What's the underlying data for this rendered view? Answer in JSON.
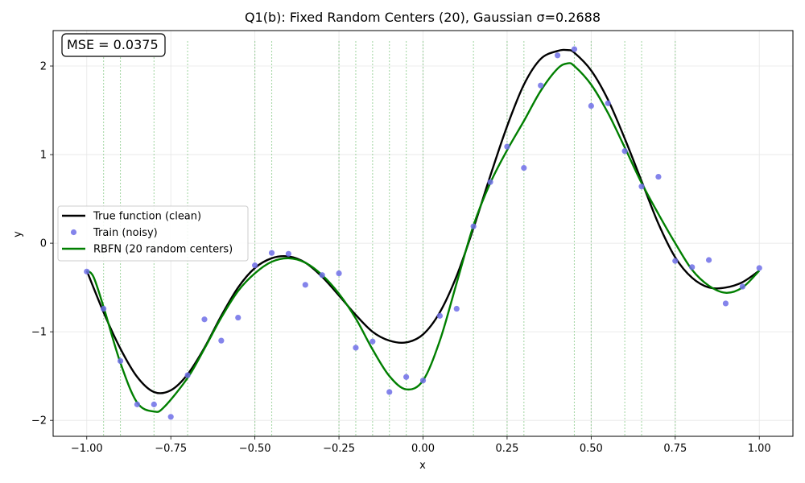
{
  "chart_data": {
    "type": "line",
    "title": "Q1(b): Fixed Random Centers (20), Gaussian σ=0.2688",
    "xlabel": "x",
    "ylabel": "y",
    "xlim": [
      -1.1,
      1.1
    ],
    "ylim": [
      -2.18,
      2.4
    ],
    "x_ticks": [
      -1.0,
      -0.75,
      -0.5,
      -0.25,
      0.0,
      0.25,
      0.5,
      0.75,
      1.0
    ],
    "x_tick_labels": [
      "−1.00",
      "−0.75",
      "−0.50",
      "−0.25",
      "0.00",
      "0.25",
      "0.50",
      "0.75",
      "1.00"
    ],
    "y_ticks": [
      -2,
      -1,
      0,
      1,
      2
    ],
    "y_tick_labels": [
      "−2",
      "−1",
      "0",
      "1",
      "2"
    ],
    "grid": true,
    "legend_position": "center-left",
    "annotation": "MSE = 0.0375",
    "series": [
      {
        "name": "True function (clean)",
        "kind": "line",
        "color": "#000000",
        "x": [
          -1.0,
          -0.95,
          -0.9,
          -0.85,
          -0.8,
          -0.75,
          -0.7,
          -0.65,
          -0.6,
          -0.55,
          -0.5,
          -0.45,
          -0.4,
          -0.35,
          -0.3,
          -0.25,
          -0.2,
          -0.15,
          -0.1,
          -0.05,
          0.0,
          0.05,
          0.1,
          0.15,
          0.2,
          0.25,
          0.3,
          0.35,
          0.4,
          0.43,
          0.45,
          0.5,
          0.55,
          0.6,
          0.65,
          0.7,
          0.75,
          0.8,
          0.85,
          0.9,
          0.95,
          1.0
        ],
        "y": [
          -0.31,
          -0.78,
          -1.19,
          -1.51,
          -1.68,
          -1.66,
          -1.48,
          -1.18,
          -0.82,
          -0.5,
          -0.28,
          -0.17,
          -0.15,
          -0.22,
          -0.38,
          -0.59,
          -0.81,
          -1.0,
          -1.1,
          -1.12,
          -1.03,
          -0.78,
          -0.37,
          0.17,
          0.76,
          1.32,
          1.79,
          2.08,
          2.17,
          2.18,
          2.15,
          1.95,
          1.62,
          1.18,
          0.7,
          0.22,
          -0.16,
          -0.39,
          -0.5,
          -0.5,
          -0.44,
          -0.31
        ]
      },
      {
        "name": "RBFN (20 random centers)",
        "kind": "line",
        "color": "#007f00",
        "x": [
          -1.0,
          -0.98,
          -0.95,
          -0.9,
          -0.85,
          -0.8,
          -0.77,
          -0.7,
          -0.65,
          -0.6,
          -0.55,
          -0.5,
          -0.45,
          -0.4,
          -0.35,
          -0.3,
          -0.25,
          -0.2,
          -0.15,
          -0.1,
          -0.05,
          0.0,
          0.05,
          0.1,
          0.15,
          0.2,
          0.25,
          0.3,
          0.35,
          0.4,
          0.43,
          0.45,
          0.5,
          0.55,
          0.6,
          0.65,
          0.7,
          0.75,
          0.8,
          0.85,
          0.9,
          0.95,
          1.0
        ],
        "y": [
          -0.31,
          -0.38,
          -0.72,
          -1.35,
          -1.8,
          -1.9,
          -1.85,
          -1.52,
          -1.19,
          -0.84,
          -0.54,
          -0.34,
          -0.21,
          -0.17,
          -0.22,
          -0.36,
          -0.57,
          -0.85,
          -1.2,
          -1.5,
          -1.65,
          -1.55,
          -1.1,
          -0.45,
          0.2,
          0.68,
          1.05,
          1.38,
          1.72,
          1.97,
          2.03,
          2.0,
          1.79,
          1.47,
          1.08,
          0.68,
          0.33,
          0.0,
          -0.3,
          -0.48,
          -0.56,
          -0.5,
          -0.31
        ]
      },
      {
        "name": "Train (noisy)",
        "kind": "scatter",
        "color": "#6f6fe8",
        "x": [
          -1.0,
          -0.95,
          -0.9,
          -0.85,
          -0.8,
          -0.75,
          -0.7,
          -0.65,
          -0.6,
          -0.55,
          -0.5,
          -0.45,
          -0.4,
          -0.35,
          -0.3,
          -0.25,
          -0.2,
          -0.15,
          -0.1,
          -0.05,
          0.0,
          0.05,
          0.1,
          0.15,
          0.2,
          0.25,
          0.3,
          0.35,
          0.4,
          0.45,
          0.5,
          0.55,
          0.6,
          0.65,
          0.7,
          0.75,
          0.8,
          0.85,
          0.9,
          0.95,
          1.0
        ],
        "y": [
          -0.32,
          -0.74,
          -1.33,
          -1.82,
          -1.82,
          -1.96,
          -1.49,
          -0.86,
          -1.1,
          -0.84,
          -0.25,
          -0.11,
          -0.12,
          -0.47,
          -0.36,
          -0.34,
          -1.18,
          -1.11,
          -1.68,
          -1.51,
          -1.55,
          -0.82,
          -0.74,
          0.19,
          0.69,
          1.09,
          0.85,
          1.78,
          2.12,
          2.19,
          1.55,
          1.58,
          1.04,
          0.64,
          0.75,
          -0.2,
          -0.27,
          -0.19,
          -0.68,
          -0.49,
          -0.28
        ]
      }
    ],
    "centers": [
      -0.95,
      -0.9,
      -0.8,
      -0.7,
      -0.5,
      -0.45,
      -0.25,
      -0.2,
      -0.15,
      -0.1,
      -0.05,
      0.0,
      0.15,
      0.25,
      0.3,
      0.45,
      0.5,
      0.6,
      0.65,
      0.75
    ],
    "centers_color": "#2ca02c"
  }
}
